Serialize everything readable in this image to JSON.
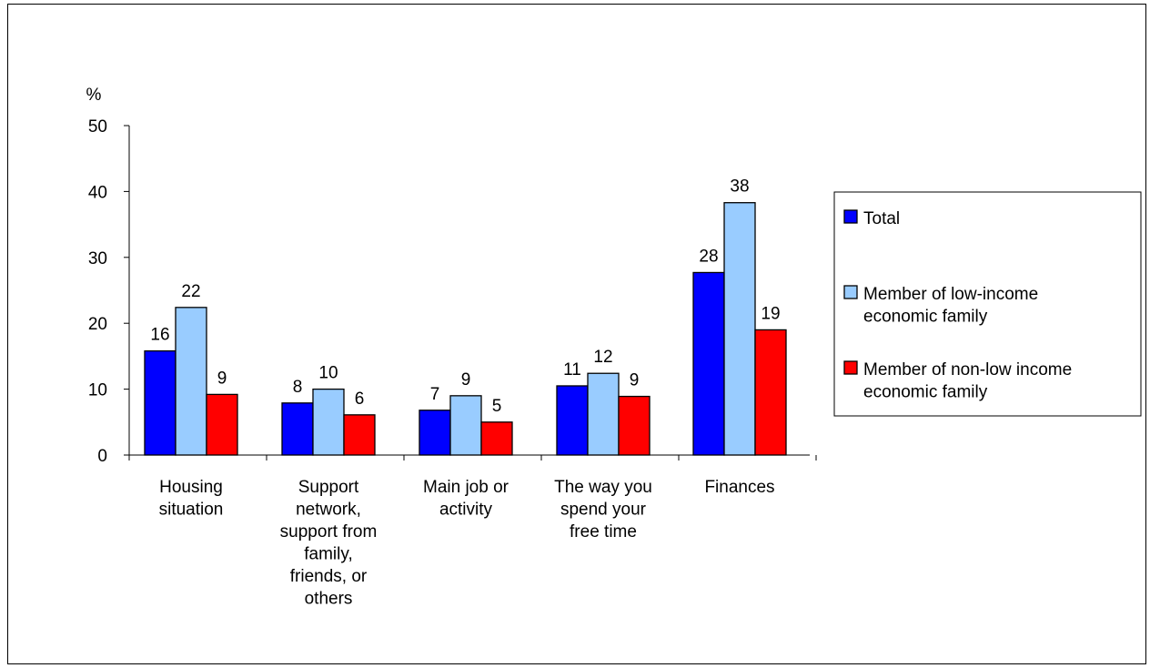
{
  "chart_data": {
    "type": "bar",
    "ylabel": "%",
    "ylim": [
      0,
      50
    ],
    "yticks": [
      0,
      10,
      20,
      30,
      40,
      50
    ],
    "categories": [
      [
        "Housing",
        "situation"
      ],
      [
        "Support",
        "network,",
        "support from",
        "family,",
        "friends, or",
        "others"
      ],
      [
        "Main job or",
        "activity"
      ],
      [
        "The way you",
        "spend your",
        "free time"
      ],
      [
        "Finances"
      ]
    ],
    "series": [
      {
        "name": [
          "Total"
        ],
        "color": "#0000ff",
        "values": [
          16,
          8,
          7,
          11,
          28
        ],
        "heights": [
          15.8,
          7.9,
          6.8,
          10.5,
          27.7
        ]
      },
      {
        "name": [
          "Member of low-income",
          "economic family"
        ],
        "color": "#99ccff",
        "values": [
          22,
          10,
          9,
          12,
          38
        ],
        "heights": [
          22.4,
          10.0,
          9.0,
          12.4,
          38.3
        ]
      },
      {
        "name": [
          "Member of non-low income",
          "economic family"
        ],
        "color": "#ff0000",
        "values": [
          9,
          6,
          5,
          9,
          19
        ],
        "heights": [
          9.2,
          6.1,
          5.0,
          8.9,
          19.0
        ]
      }
    ],
    "legend": "right",
    "grid": false
  }
}
